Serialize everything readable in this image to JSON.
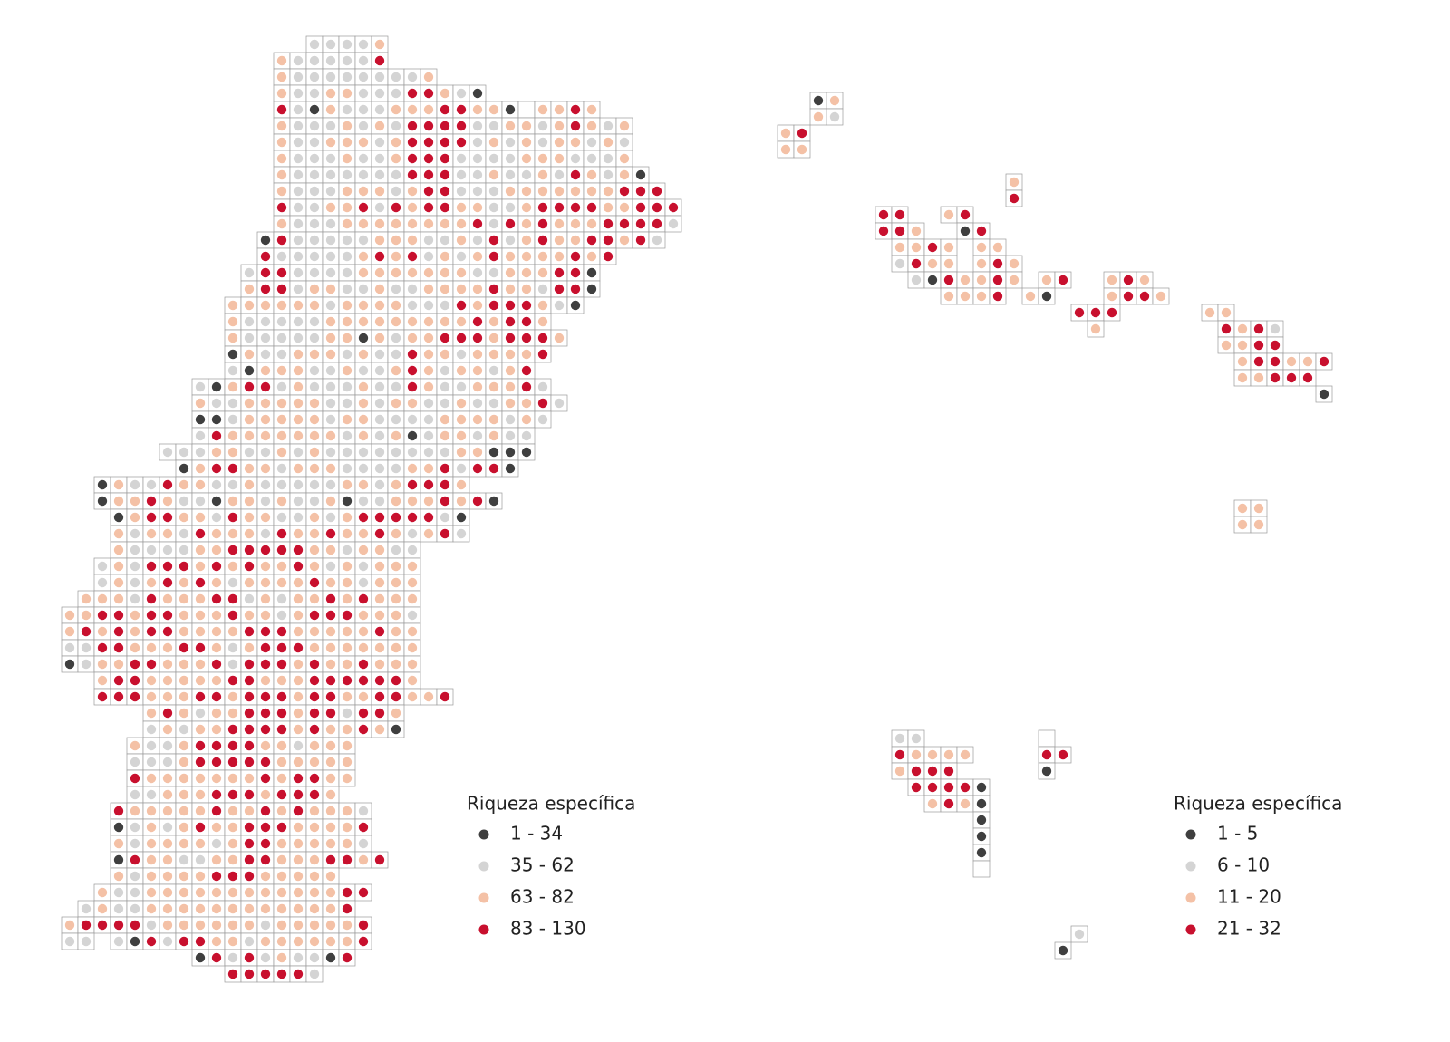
{
  "panels": [
    {
      "legend": {
        "title": "Riqueza específica",
        "classes": [
          {
            "label": "1 - 34",
            "color": "#3f3f3f"
          },
          {
            "label": "35 - 62",
            "color": "#d4d4d4"
          },
          {
            "label": "63 - 82",
            "color": "#f4c1a6"
          },
          {
            "label": "83 - 130",
            "color": "#c8102e"
          }
        ]
      },
      "grids": [
        {
          "rows": [
            "...............22223",
            ".............3222224",
            ".............3222222223",
            ".............3223322244321",
            ".............421322233344331-3343",
            ".............3222323244442233234323",
            ".............3223332344442323233232",
            ".............3222322344422223332223",
            ".............32222222444223223243231",
            ".............322233323442223333333444",
            ".............4223342434433223444433444",
            ".............3222333333334243433344442",
            "............1422222333223242343344342",
            "............4222223434232343333434",
            "...........2442222333333322333441",
            "...........3442332232233334332441",
            "..........3333332333322243444321",
            "..........32222233333333343443",
            "..........322222331323344434443",
            "..........13223332322433233334",
            "..........2133322322343233234",
            "........2134423222322432233342",
            "........32233333223233223223342",
            "........1123333323322223333232",
            "........243333333232312332322",
            "......22233223232222222233111",
            ".......134433233322223342441",
            "..13224332232222233234443",
            "..1334322133232231223334341",
            "...1344332433223234444421",
            "...3233243332433433432342",
            "...3222233444443323322",
            "..23244434343343232333",
            "..23234343233334332333",
            ".333243334423233434333",
            "3344344333433234443332",
            "3434344333344433333433",
            "2244333443234443333333",
            "1233443334244434334333",
            "..34433333443334444443",
            "..4443334434443443344334",
            ".....3432334443442443",
            ".....2323344443433431",
            "....32234444332333",
            "....22234444433333",
            "....43333333434433",
            "....2233344434443",
            "...4333334334343332",
            "...1232343344433334",
            "...3233332344333332",
            "...14332233443334434",
            "...32333344433333",
            "..32233333333333344",
            ".23223333333333334",
            "3444423333332333334",
            "22.2142443323333334",
            "........1424232214",
            "..........444442"
          ]
        }
      ]
    },
    {
      "legend": {
        "title": "Riqueza específica",
        "classes": [
          {
            "label": "1 - 5",
            "color": "#3f3f3f"
          },
          {
            "label": "6 - 10",
            "color": "#d4d4d4"
          },
          {
            "label": "11 - 20",
            "color": "#f4c1a6"
          },
          {
            "label": "21 - 32",
            "color": "#c8102e"
          }
        ]
      },
      "grids": [
        {
          "rows": [
            "..13",
            "..32",
            "34",
            "33",
            "",
            "..............3",
            "..............4",
            "......44..34",
            "......443..14",
            ".......3343.33",
            ".......2433.343",
            "........2143343.34..343",
            "..........3334.31...3443",
            "..................444.....33",
            "...................3.......4342",
            "...........................3344",
            "............................344334",
            "............................33444",
            ".................................1",
            "",
            "",
            "",
            "",
            "",
            "",
            "............................33",
            "............................33"
          ]
        },
        {
          "rows": [
            "22.......-",
            "43333....44",
            "3444.....1",
            ".44441",
            "..3431",
            ".....1",
            ".....1",
            ".....1",
            ".....-",
            "",
            "",
            "",
            "...........2",
            "..........1"
          ]
        }
      ]
    }
  ]
}
